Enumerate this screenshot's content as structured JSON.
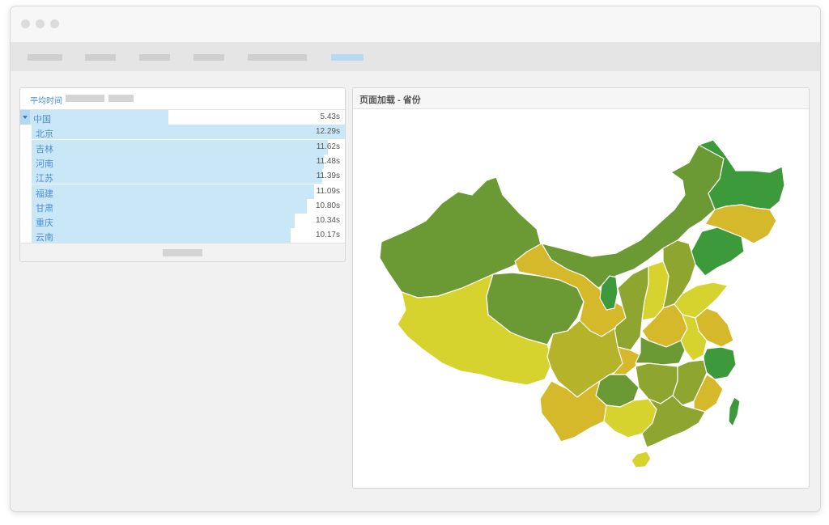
{
  "colors": {
    "bar": "#c9e7f7",
    "link_text": "#4d8fd6",
    "map_dark_green": "#3d9a3a",
    "map_green": "#6b9a34",
    "map_olive": "#8ea62f",
    "map_yellow_green": "#b4b32a",
    "map_yellow": "#d6d32e",
    "map_gold": "#d6b82b"
  },
  "left_panel": {
    "header_label": "平均时间",
    "rows": [
      {
        "name": "中国",
        "value": "5.43s",
        "fraction": 0.44
      },
      {
        "name": "北京",
        "value": "12.29s",
        "fraction": 1.0
      },
      {
        "name": "吉林",
        "value": "11.62s",
        "fraction": 0.945
      },
      {
        "name": "河南",
        "value": "11.48s",
        "fraction": 0.934
      },
      {
        "name": "江苏",
        "value": "11.39s",
        "fraction": 0.927
      },
      {
        "name": "福建",
        "value": "11.09s",
        "fraction": 0.902
      },
      {
        "name": "甘肃",
        "value": "10.80s",
        "fraction": 0.879
      },
      {
        "name": "重庆",
        "value": "10.34s",
        "fraction": 0.841
      },
      {
        "name": "云南",
        "value": "10.17s",
        "fraction": 0.827
      }
    ]
  },
  "right_panel": {
    "title": "页面加载 - 省份"
  },
  "map": {
    "regions": [
      {
        "name": "xinjiang",
        "color": "#6b9a34"
      },
      {
        "name": "tibet",
        "color": "#d6d32e"
      },
      {
        "name": "qinghai",
        "color": "#6b9a34"
      },
      {
        "name": "gansu",
        "color": "#d6b82b"
      },
      {
        "name": "inner-mongolia",
        "color": "#6b9a34"
      },
      {
        "name": "heilongjiang",
        "color": "#3d9a3a"
      },
      {
        "name": "jilin",
        "color": "#d6b82b"
      },
      {
        "name": "liaoning",
        "color": "#3d9a3a"
      },
      {
        "name": "ningxia",
        "color": "#3d9a3a"
      },
      {
        "name": "shaanxi",
        "color": "#8ea62f"
      },
      {
        "name": "shanxi",
        "color": "#d6d32e"
      },
      {
        "name": "hebei",
        "color": "#8ea62f"
      },
      {
        "name": "shandong",
        "color": "#d6d32e"
      },
      {
        "name": "henan",
        "color": "#d6b82b"
      },
      {
        "name": "jiangsu",
        "color": "#d6b82b"
      },
      {
        "name": "anhui",
        "color": "#d6d32e"
      },
      {
        "name": "zhejiang",
        "color": "#3d9a3a"
      },
      {
        "name": "sichuan",
        "color": "#b4b32a"
      },
      {
        "name": "chongqing",
        "color": "#d6b82b"
      },
      {
        "name": "hubei",
        "color": "#6b9a34"
      },
      {
        "name": "hunan",
        "color": "#8ea62f"
      },
      {
        "name": "jiangxi",
        "color": "#8ea62f"
      },
      {
        "name": "fujian",
        "color": "#d6b82b"
      },
      {
        "name": "guizhou",
        "color": "#6b9a34"
      },
      {
        "name": "yunnan",
        "color": "#d6b82b"
      },
      {
        "name": "guangxi",
        "color": "#d6d32e"
      },
      {
        "name": "guangdong",
        "color": "#8ea62f"
      },
      {
        "name": "hainan",
        "color": "#d6d32e"
      },
      {
        "name": "taiwan",
        "color": "#3d9a3a"
      }
    ]
  }
}
